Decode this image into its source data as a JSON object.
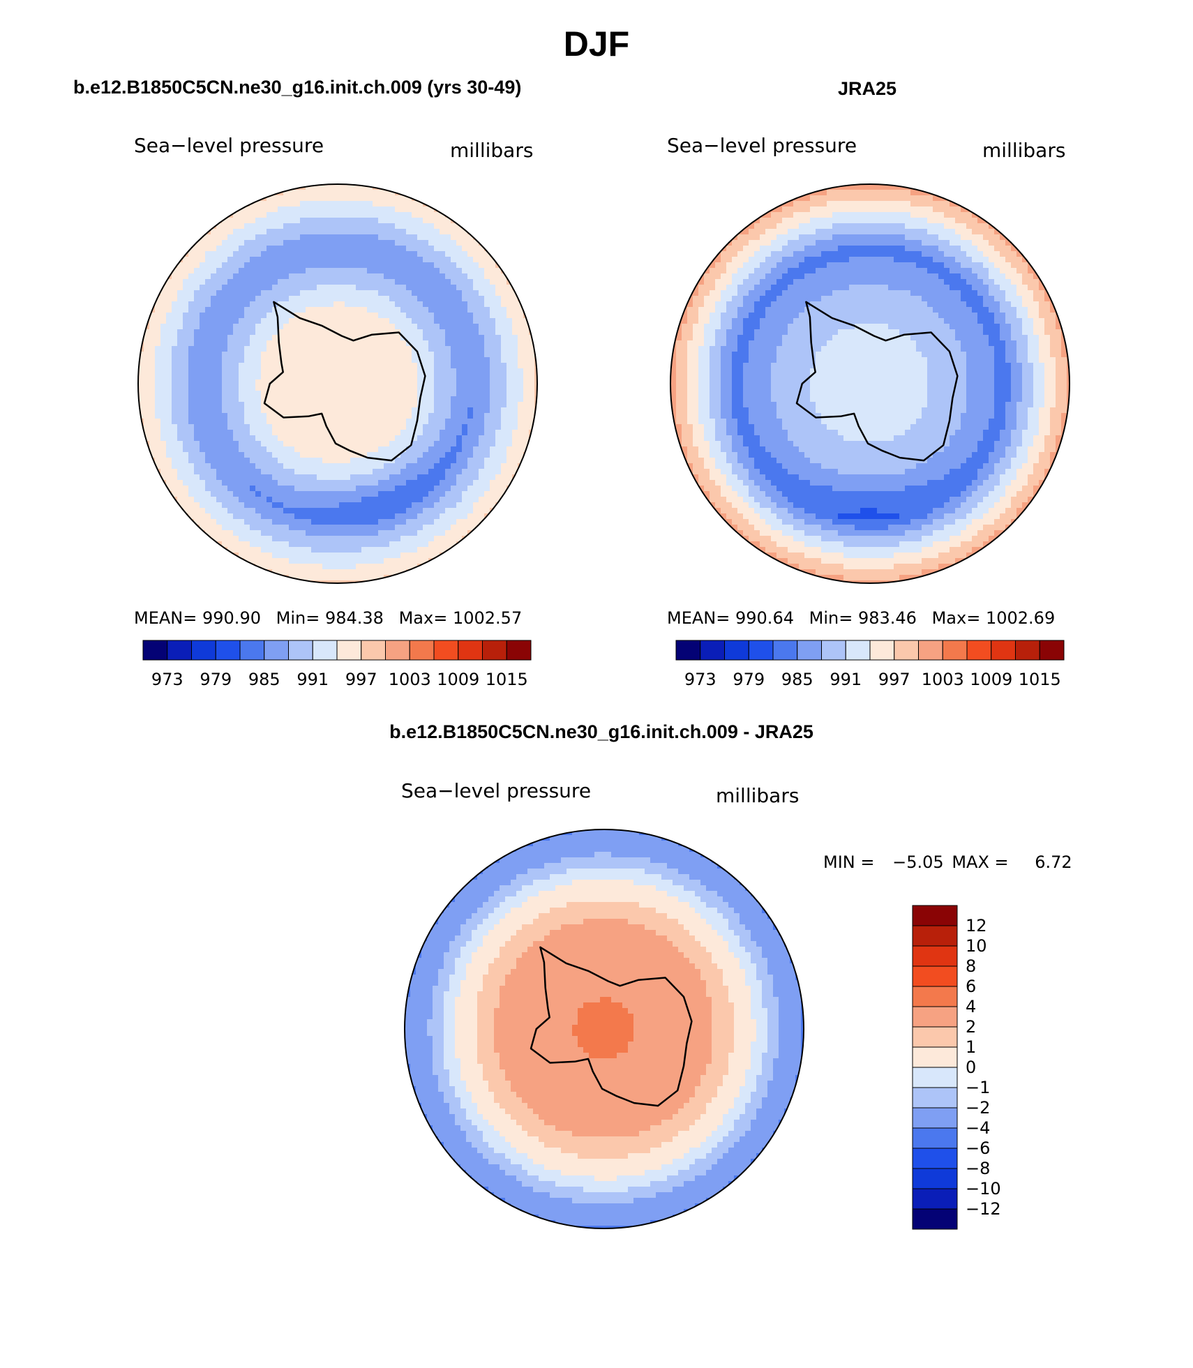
{
  "title": "DJF",
  "colors": {
    "abs": [
      "#040275",
      "#0a1eb8",
      "#0f3ad9",
      "#1f50ea",
      "#4b78ee",
      "#7f9ff3",
      "#adc4f8",
      "#d8e7fb",
      "#fde9da",
      "#fbc8ac",
      "#f6a282",
      "#f3794c",
      "#f24d20",
      "#e03512",
      "#b8200a",
      "#8a0405"
    ],
    "diff": [
      "#040275",
      "#0a1eb8",
      "#0f3ad9",
      "#1f50ea",
      "#4b78ee",
      "#7f9ff3",
      "#adc4f8",
      "#d8e7fb",
      "#fde9da",
      "#fbc8ac",
      "#f6a282",
      "#f3794c",
      "#f24d20",
      "#e03512",
      "#b8200a",
      "#8a0405"
    ]
  },
  "chart_data": [
    {
      "type": "heatmap",
      "panel": "model",
      "title": "b.e12.B1850C5CN.ne30_g16.init.ch.009 (yrs 30-49)",
      "left_label": "Sea−level pressure",
      "right_label": "millibars",
      "stats": {
        "mean_label": "MEAN=",
        "mean": "990.90",
        "min_label": "Min=",
        "min": "984.38",
        "max_label": "Max=",
        "max": "1002.57"
      },
      "colorbar_ticks": [
        "973",
        "979",
        "985",
        "991",
        "997",
        "1003",
        "1009",
        "1015"
      ],
      "field": {
        "pole": 997,
        "coast": 994,
        "trough": 985,
        "edge": 997,
        "low_center_deg": 70,
        "low_depth": 3
      }
    },
    {
      "type": "heatmap",
      "panel": "obs",
      "title": "JRA25",
      "left_label": "Sea−level pressure",
      "right_label": "millibars",
      "stats": {
        "mean_label": "MEAN=",
        "mean": "990.64",
        "min_label": "Min=",
        "min": "983.46",
        "max_label": "Max=",
        "max": "1002.69"
      },
      "colorbar_ticks": [
        "973",
        "979",
        "985",
        "991",
        "997",
        "1003",
        "1009",
        "1015"
      ],
      "field": {
        "pole": 994,
        "coast": 990,
        "trough": 984,
        "edge": 1001,
        "low_center_deg": 90,
        "low_depth": 3
      }
    },
    {
      "type": "heatmap",
      "panel": "difference",
      "title": "b.e12.B1850C5CN.ne30_g16.init.ch.009 - JRA25",
      "left_label": "Sea−level pressure",
      "right_label": "millibars",
      "stats_line": {
        "min_label": "MIN =",
        "min": "−5.05",
        "max_label": "MAX =",
        "max": "6.72"
      },
      "colorbar_ticks": [
        "12",
        "10",
        "8",
        "6",
        "4",
        "2",
        "1",
        "0",
        "−1",
        "−2",
        "−4",
        "−6",
        "−8",
        "−10",
        "−12"
      ],
      "field": {
        "pole": 4.5,
        "coast": 3,
        "trough": 0,
        "edge": -4
      }
    }
  ]
}
